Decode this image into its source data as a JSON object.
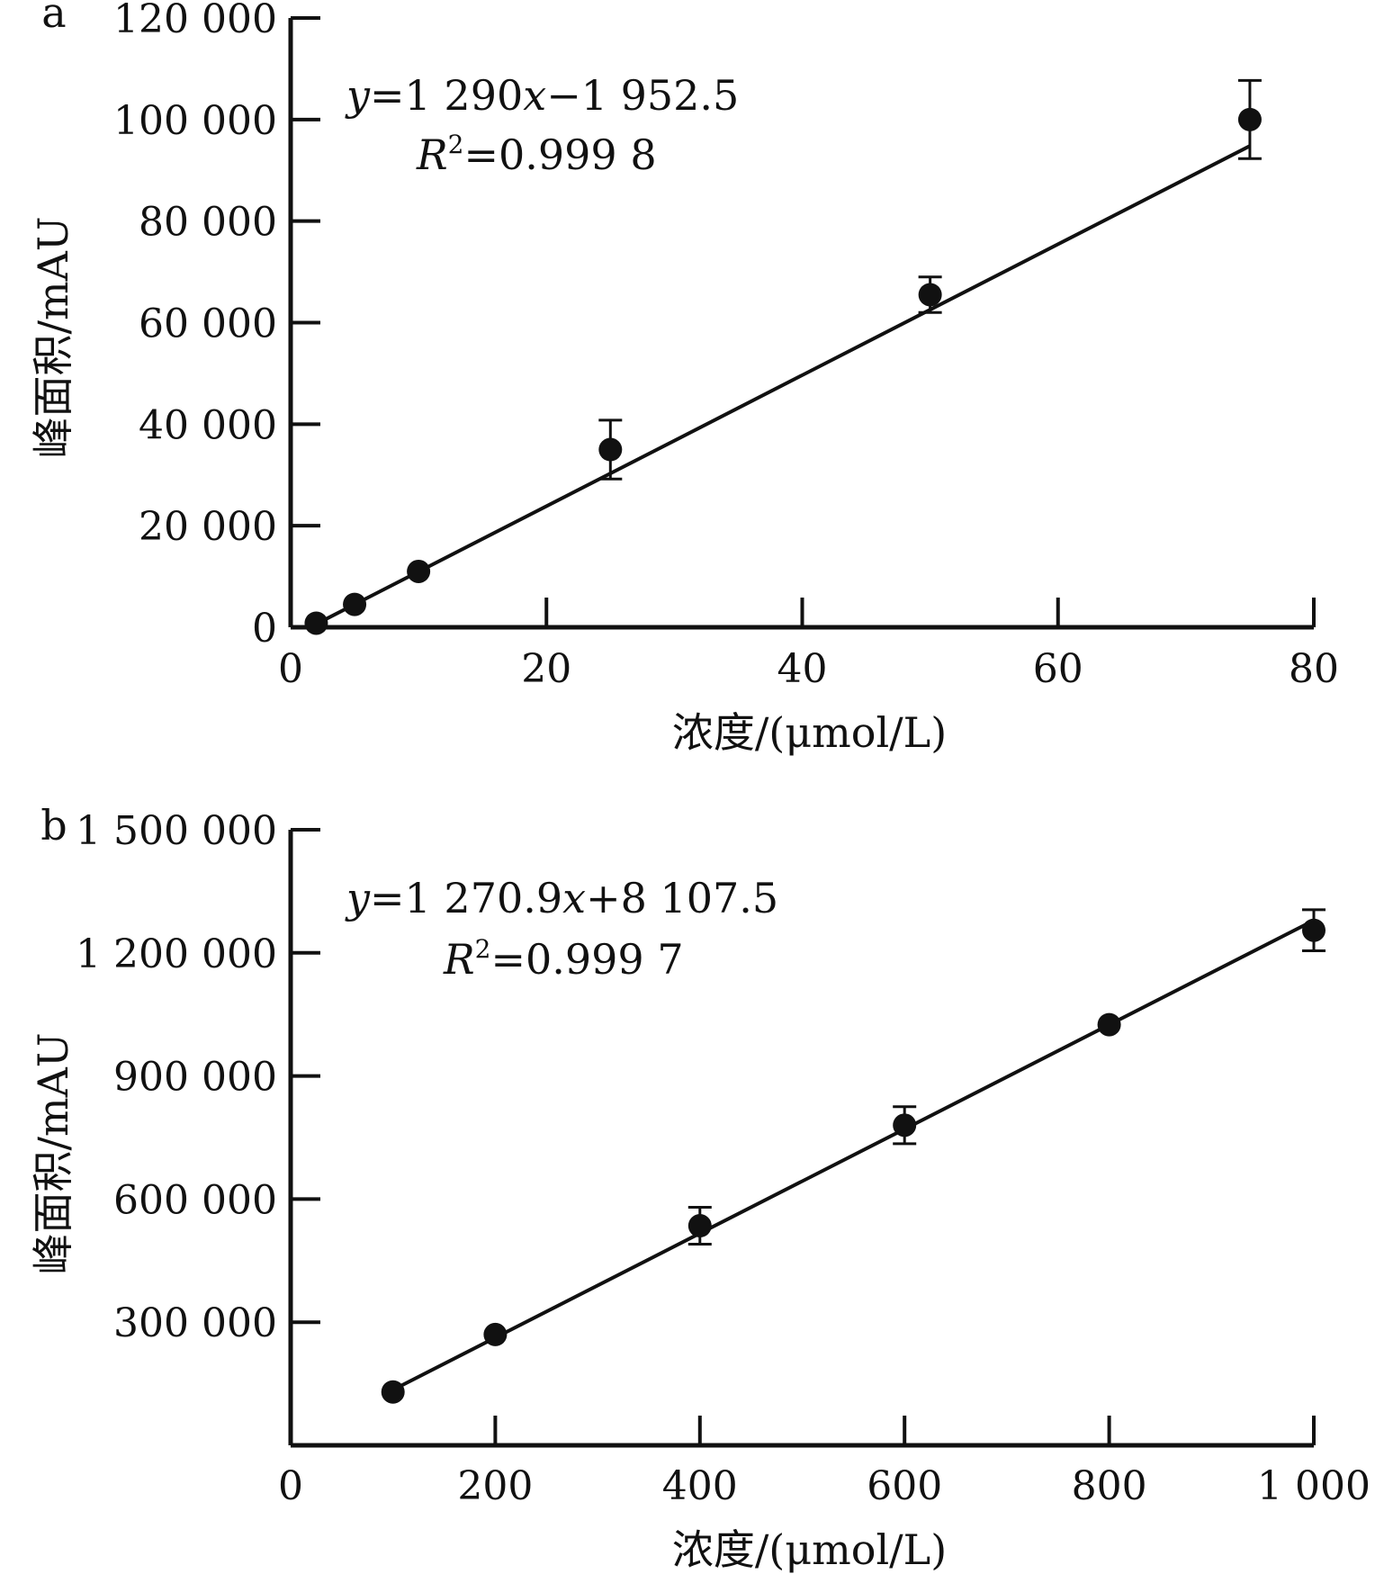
{
  "chart_data": [
    {
      "type": "scatter",
      "panel_label": "a",
      "xlabel": "浓度/(μmol/L)",
      "ylabel": "峰面积/mAU",
      "xlim": [
        0,
        80
      ],
      "ylim": [
        0,
        120000
      ],
      "xticks": [
        0,
        20,
        40,
        60,
        80
      ],
      "xtick_labels": [
        "0",
        "20",
        "40",
        "60",
        "80"
      ],
      "yticks": [
        0,
        20000,
        40000,
        60000,
        80000,
        100000,
        120000
      ],
      "ytick_labels": [
        "0",
        "20 000",
        "40 000",
        "60 000",
        "80 000",
        "100 000",
        "120 000"
      ],
      "points": [
        {
          "x": 2,
          "y": 800,
          "err": 0
        },
        {
          "x": 5,
          "y": 4500,
          "err": 0
        },
        {
          "x": 10,
          "y": 11000,
          "err": 0
        },
        {
          "x": 25,
          "y": 35000,
          "err": 5800
        },
        {
          "x": 50,
          "y": 65500,
          "err": 3500
        },
        {
          "x": 75,
          "y": 100000,
          "err": 7700
        }
      ],
      "fit": {
        "slope": 1290,
        "intercept": -1952.5,
        "x_range": [
          2,
          75
        ]
      },
      "equation": {
        "y_var": "y",
        "coef_text": "=1 290",
        "x_var": "x",
        "const_text": "−1 952.5"
      },
      "r2": {
        "r_var": "R",
        "sup": "2",
        "value_text": "=0.999 8"
      },
      "grid": false,
      "legend": "none"
    },
    {
      "type": "scatter",
      "panel_label": "b",
      "xlabel": "浓度/(μmol/L)",
      "ylabel": "峰面积/mAU",
      "xlim": [
        0,
        1000
      ],
      "ylim": [
        0,
        1500000
      ],
      "xticks": [
        0,
        200,
        400,
        600,
        800,
        1000
      ],
      "xtick_labels": [
        "0",
        "200",
        "400",
        "600",
        "800",
        "1 000"
      ],
      "yticks": [
        300000,
        600000,
        900000,
        1200000,
        1500000
      ],
      "ytick_labels": [
        "300 000",
        "600 000",
        "900 000",
        "1 200 000",
        "1 500 000"
      ],
      "points": [
        {
          "x": 100,
          "y": 130000,
          "err": 0
        },
        {
          "x": 200,
          "y": 270000,
          "err": 0
        },
        {
          "x": 400,
          "y": 535000,
          "err": 45000
        },
        {
          "x": 600,
          "y": 780000,
          "err": 45000
        },
        {
          "x": 800,
          "y": 1025000,
          "err": 0
        },
        {
          "x": 1000,
          "y": 1255000,
          "err": 50000
        }
      ],
      "fit": {
        "slope": 1270.9,
        "intercept": 8107.5,
        "x_range": [
          100,
          1000
        ]
      },
      "equation": {
        "y_var": "y",
        "coef_text": "=1 270.9",
        "x_var": "x",
        "const_text": "+8 107.5"
      },
      "r2": {
        "r_var": "R",
        "sup": "2",
        "value_text": "=0.999 7"
      },
      "grid": false,
      "legend": "none"
    }
  ]
}
